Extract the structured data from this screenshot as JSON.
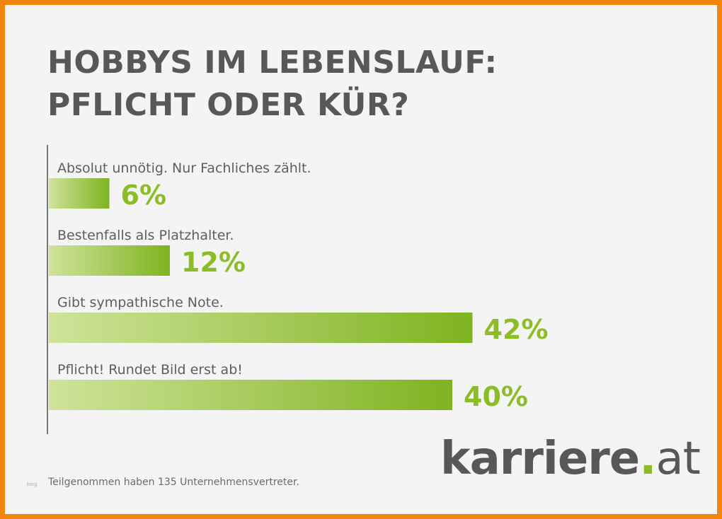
{
  "title": {
    "line1": "HOBBYS IM LEBENSLAUF:",
    "line2": "PFLICHT ODER KÜR?"
  },
  "chart_data": {
    "type": "bar",
    "orientation": "horizontal",
    "categories": [
      "Absolut unnötig. Nur Fachliches zählt.",
      "Bestenfalls als Platzhalter.",
      "Gibt sympathische Note.",
      "Pflicht! Rundet Bild erst ab!"
    ],
    "values": [
      6,
      12,
      42,
      40
    ],
    "value_labels": [
      "6%",
      "12%",
      "42%",
      "40%"
    ],
    "unit": "%",
    "colors": {
      "bar_light": "#cfe39a",
      "bar_dark": "#7fb321",
      "value_text": "#8cbd27",
      "axis": "#777777"
    },
    "grid": false,
    "legend": "none"
  },
  "footnote": "Teilgenommen haben 135 Unternehmensvertreter.",
  "small_mark": "blog",
  "logo": {
    "name": "karriere",
    "dot": ".",
    "tld": "at"
  },
  "colors": {
    "border": "#f0860f",
    "background": "#f4f4f4",
    "title": "#585858",
    "accent": "#8cbd27"
  }
}
